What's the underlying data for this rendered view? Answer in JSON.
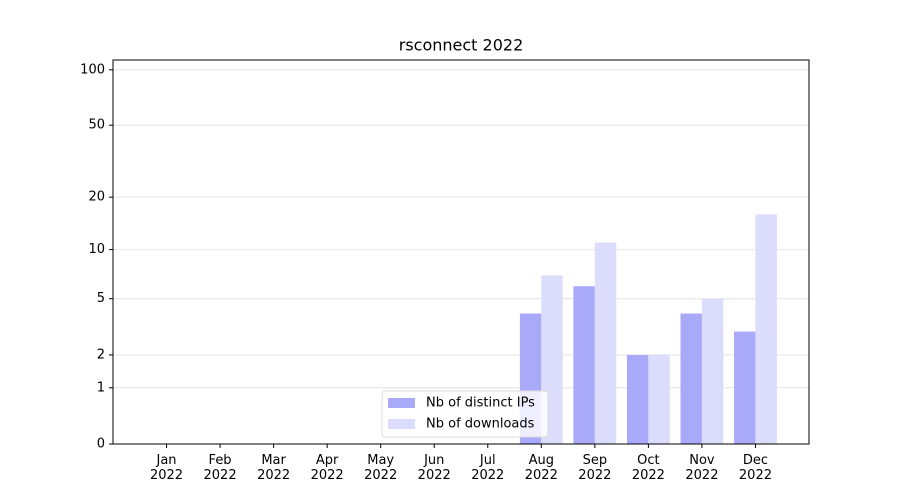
{
  "chart_data": {
    "type": "bar",
    "title": "rsconnect 2022",
    "categories": [
      "Jan\n2022",
      "Feb\n2022",
      "Mar\n2022",
      "Apr\n2022",
      "May\n2022",
      "Jun\n2022",
      "Jul\n2022",
      "Aug\n2022",
      "Sep\n2022",
      "Oct\n2022",
      "Nov\n2022",
      "Dec\n2022"
    ],
    "series": [
      {
        "name": "Nb of distinct IPs",
        "color": "#a9a9fa",
        "values": [
          0,
          0,
          0,
          0,
          0,
          0,
          0,
          4,
          6,
          2,
          4,
          3
        ]
      },
      {
        "name": "Nb of downloads",
        "color": "#dcdcfc",
        "values": [
          0,
          0,
          0,
          0,
          0,
          0,
          0,
          7,
          11,
          2,
          5,
          16
        ]
      }
    ],
    "y_scale": "log1p",
    "ylim": [
      0,
      113
    ],
    "yticks": [
      0,
      1,
      2,
      5,
      10,
      20,
      50,
      100
    ],
    "grid": true,
    "legend": "lower center"
  }
}
